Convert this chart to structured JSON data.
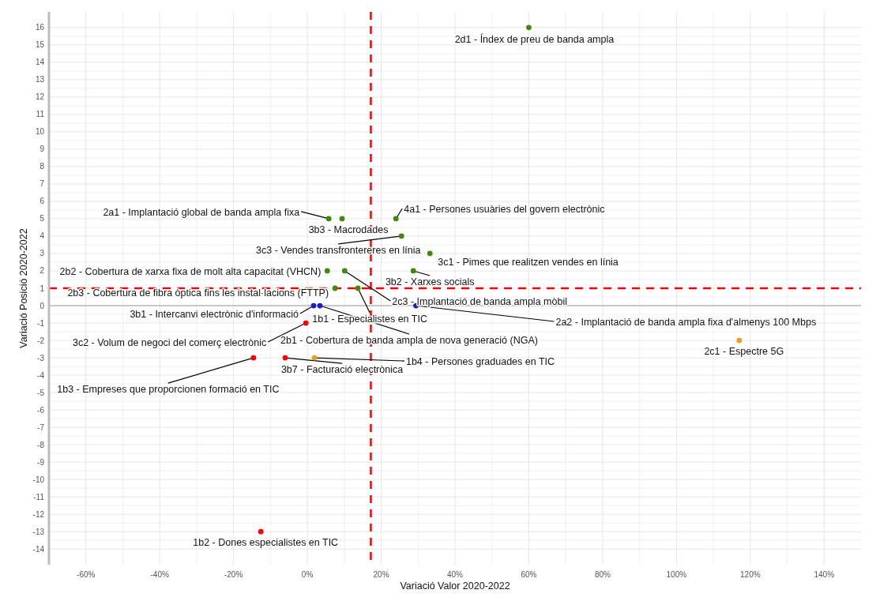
{
  "chart_data": {
    "type": "scatter",
    "xlabel": "Variació Valor 2020-2022",
    "ylabel": "Variació Posició  2020-2022",
    "xlim": [
      -70,
      150
    ],
    "ylim": [
      -14.9,
      16.9
    ],
    "xticks": [
      {
        "value": -60,
        "label": "-60%"
      },
      {
        "value": -40,
        "label": "-40%"
      },
      {
        "value": -20,
        "label": "-20%"
      },
      {
        "value": 0,
        "label": "0%"
      },
      {
        "value": 20,
        "label": "20%"
      },
      {
        "value": 40,
        "label": "40%"
      },
      {
        "value": 60,
        "label": "60%"
      },
      {
        "value": 80,
        "label": "80%"
      },
      {
        "value": 100,
        "label": "100%"
      },
      {
        "value": 120,
        "label": "120%"
      },
      {
        "value": 140,
        "label": "140%"
      }
    ],
    "yticks": [
      -14,
      -13,
      -12,
      -11,
      -10,
      -9,
      -8,
      -7,
      -6,
      -5,
      -4,
      -3,
      -2,
      -1,
      0,
      1,
      2,
      3,
      4,
      5,
      6,
      7,
      8,
      9,
      10,
      11,
      12,
      13,
      14,
      15,
      16
    ],
    "grid": true,
    "marker": "circle",
    "series": [
      {
        "x": [
          60,
          5.8,
          9.4,
          24,
          25.5,
          33.2,
          5.4,
          10.1,
          28.7,
          7.5,
          13.7,
          1.7,
          3.4,
          29.4,
          -0.4,
          -14.6,
          -6,
          1.9,
          117,
          -12.6
        ],
        "values": [
          16,
          5,
          5,
          5,
          4,
          3,
          2,
          2,
          2,
          1,
          1,
          0,
          0,
          0,
          -1,
          -3,
          -3,
          -3,
          -2,
          -13
        ],
        "colors": [
          "#3f8a0a",
          "#3f8a0a",
          "#3f8a0a",
          "#3f8a0a",
          "#3f8a0a",
          "#3f8a0a",
          "#3f8a0a",
          "#3f8a0a",
          "#3f8a0a",
          "#3f8a0a",
          "#3f8a0a",
          "#1c1cc8",
          "#1c1cc8",
          "#1c1cc8",
          "#ff0000",
          "#ff0000",
          "#ff0000",
          "#f39c12",
          "#f39c12",
          "#ff0000"
        ]
      }
    ],
    "ref_lines": [
      {
        "axis": "y",
        "value": 0,
        "color": "#c8c8c8",
        "line_style": "solid"
      },
      {
        "axis": "x",
        "value": 17.2,
        "color": "#ff0000",
        "line_style": "dashed"
      },
      {
        "axis": "y",
        "value": 1,
        "color": "#ff0000",
        "line_style": "dashed"
      }
    ],
    "annotations": [
      {
        "text": "2d1 - Índex de preu de banda ampla",
        "x": 60,
        "y": 16
      },
      {
        "text": "2a1 - Implantació global de banda ampla fixa",
        "x": 5.8,
        "y": 5
      },
      {
        "text": "3b3 - Macrodades",
        "x": 9.4,
        "y": 5
      },
      {
        "text": "4a1 - Persones usuàries del govern electrònic",
        "x": 24,
        "y": 5
      },
      {
        "text": "3c3 - Vendes transfrontereres en línia",
        "x": 25.5,
        "y": 4
      },
      {
        "text": "3c1 - Pimes que realitzen vendes en línia",
        "x": 33.2,
        "y": 3
      },
      {
        "text": "2b2 - Cobertura de xarxa fixa de molt alta capacitat (VHCN)",
        "x": 5.4,
        "y": 2
      },
      {
        "text": "2c3 - Implantació de banda ampla mòbil",
        "x": 10.1,
        "y": 2
      },
      {
        "text": "3b2 - Xarxes socials",
        "x": 28.7,
        "y": 2
      },
      {
        "text": "2b3 - Cobertura de fibra òptica fins les instal·lacions (FTTP)",
        "x": 7.5,
        "y": 1
      },
      {
        "text": "1b1 - Especialistes en TIC",
        "x": 13.7,
        "y": 1
      },
      {
        "text": "3b1 - Intercanvi electrònic d'informació",
        "x": 1.7,
        "y": 0
      },
      {
        "text": "2b1 - Cobertura de banda ampla de nova generació (NGA)",
        "x": 3.4,
        "y": 0
      },
      {
        "text": "2a2 - Implantació de banda ampla fixa d'almenys 100 Mbps",
        "x": 29.4,
        "y": 0
      },
      {
        "text": "3c2 - Volum de negoci del comerç electrònic",
        "x": -0.4,
        "y": -1
      },
      {
        "text": "1b3 - Empreses que proporcionen formació en TIC",
        "x": -14.6,
        "y": -3
      },
      {
        "text": "3b7 - Facturació electrònica",
        "x": -6,
        "y": -3
      },
      {
        "text": "1b4 - Persones graduades en TIC",
        "x": 1.9,
        "y": -3
      },
      {
        "text": "2c1 - Espectre 5G",
        "x": 117,
        "y": -2
      },
      {
        "text": "1b2 - Dones especialistes en TIC",
        "x": -12.6,
        "y": -13
      }
    ]
  }
}
